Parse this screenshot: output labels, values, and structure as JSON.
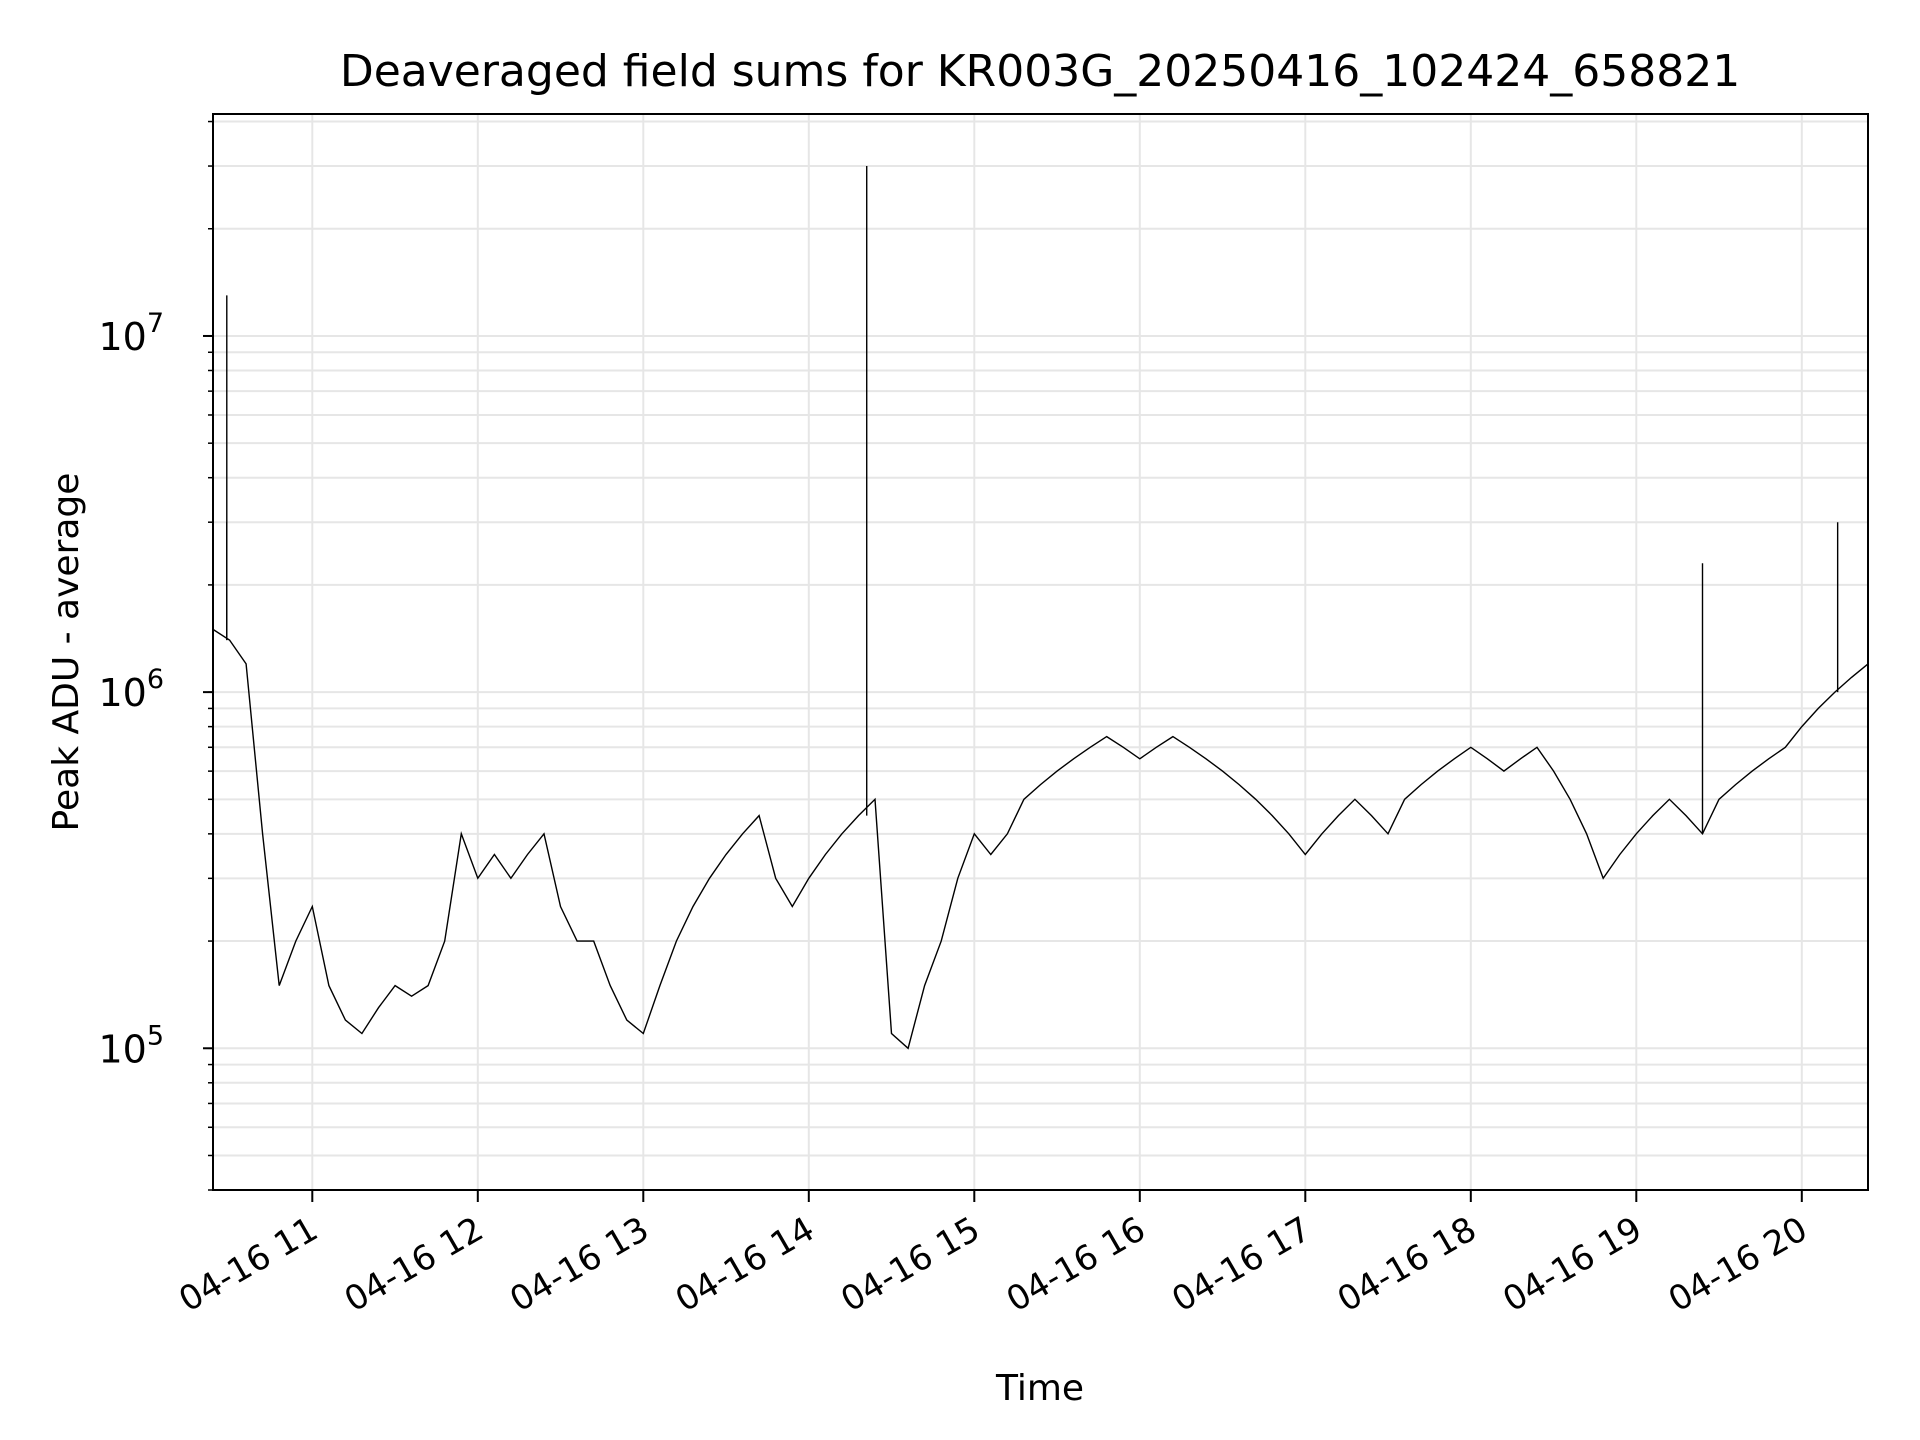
{
  "chart_data": {
    "type": "line",
    "title": "Deaveraged field sums for KR003G_20250416_102424_658821",
    "xlabel": "Time",
    "ylabel": "Peak ADU - average",
    "yscale": "log",
    "xlim": [
      "04-16 10:24",
      "04-16 20:24"
    ],
    "ylim": [
      40000,
      42000000
    ],
    "grid": true,
    "line_color": "#000000",
    "grid_color": "#e6e6e6",
    "x_ticks": [
      "04-16 11",
      "04-16 12",
      "04-16 13",
      "04-16 14",
      "04-16 15",
      "04-16 16",
      "04-16 17",
      "04-16 18",
      "04-16 19",
      "04-16 20"
    ],
    "y_ticks": [
      {
        "value": 100000,
        "base": "10",
        "exp": "5"
      },
      {
        "value": 1000000,
        "base": "10",
        "exp": "6"
      },
      {
        "value": 10000000,
        "base": "10",
        "exp": "7"
      }
    ],
    "series": [
      {
        "x": [
          "04-16 10:24",
          "04-16 10:30",
          "04-16 10:36",
          "04-16 10:42",
          "04-16 10:48",
          "04-16 10:54",
          "04-16 11:00",
          "04-16 11:06",
          "04-16 11:12",
          "04-16 11:18",
          "04-16 11:24",
          "04-16 11:30",
          "04-16 11:36",
          "04-16 11:42",
          "04-16 11:48",
          "04-16 11:54",
          "04-16 12:00",
          "04-16 12:06",
          "04-16 12:12",
          "04-16 12:18",
          "04-16 12:24",
          "04-16 12:30",
          "04-16 12:36",
          "04-16 12:42",
          "04-16 12:48",
          "04-16 12:54",
          "04-16 13:00",
          "04-16 13:06",
          "04-16 13:12",
          "04-16 13:18",
          "04-16 13:24",
          "04-16 13:30",
          "04-16 13:36",
          "04-16 13:42",
          "04-16 13:48",
          "04-16 13:54",
          "04-16 14:00",
          "04-16 14:06",
          "04-16 14:12",
          "04-16 14:18",
          "04-16 14:24",
          "04-16 14:30",
          "04-16 14:36",
          "04-16 14:42",
          "04-16 14:48",
          "04-16 14:54",
          "04-16 15:00",
          "04-16 15:06",
          "04-16 15:12",
          "04-16 15:18",
          "04-16 15:24",
          "04-16 15:30",
          "04-16 15:36",
          "04-16 15:42",
          "04-16 15:48",
          "04-16 15:54",
          "04-16 16:00",
          "04-16 16:06",
          "04-16 16:12",
          "04-16 16:18",
          "04-16 16:24",
          "04-16 16:30",
          "04-16 16:36",
          "04-16 16:42",
          "04-16 16:48",
          "04-16 16:54",
          "04-16 17:00",
          "04-16 17:06",
          "04-16 17:12",
          "04-16 17:18",
          "04-16 17:24",
          "04-16 17:30",
          "04-16 17:36",
          "04-16 17:42",
          "04-16 17:48",
          "04-16 17:54",
          "04-16 18:00",
          "04-16 18:06",
          "04-16 18:12",
          "04-16 18:18",
          "04-16 18:24",
          "04-16 18:30",
          "04-16 18:36",
          "04-16 18:42",
          "04-16 18:48",
          "04-16 18:54",
          "04-16 19:00",
          "04-16 19:06",
          "04-16 19:12",
          "04-16 19:18",
          "04-16 19:24",
          "04-16 19:30",
          "04-16 19:36",
          "04-16 19:42",
          "04-16 19:48",
          "04-16 19:54",
          "04-16 20:00",
          "04-16 20:06",
          "04-16 20:12",
          "04-16 20:18",
          "04-16 20:24"
        ],
        "y": [
          1500000,
          1400000,
          1200000,
          400000,
          150000,
          200000,
          250000,
          150000,
          120000,
          110000,
          130000,
          150000,
          140000,
          150000,
          200000,
          400000,
          300000,
          350000,
          300000,
          350000,
          400000,
          250000,
          200000,
          200000,
          150000,
          120000,
          110000,
          150000,
          200000,
          250000,
          300000,
          350000,
          400000,
          450000,
          300000,
          250000,
          300000,
          350000,
          400000,
          450000,
          500000,
          110000,
          100000,
          150000,
          200000,
          300000,
          400000,
          350000,
          400000,
          500000,
          550000,
          600000,
          650000,
          700000,
          750000,
          700000,
          650000,
          700000,
          750000,
          700000,
          650000,
          600000,
          550000,
          500000,
          450000,
          400000,
          350000,
          400000,
          450000,
          500000,
          450000,
          400000,
          500000,
          550000,
          600000,
          650000,
          700000,
          650000,
          600000,
          650000,
          700000,
          600000,
          500000,
          400000,
          300000,
          350000,
          400000,
          450000,
          500000,
          450000,
          400000,
          500000,
          550000,
          600000,
          650000,
          700000,
          800000,
          900000,
          1000000,
          1100000,
          1200000
        ],
        "spikes": [
          {
            "x": "04-16 10:29",
            "y": 13000000
          },
          {
            "x": "04-16 14:21",
            "y": 30000000
          },
          {
            "x": "04-16 10:29",
            "y": 3000000
          },
          {
            "x": "04-16 20:13",
            "y": 3000000
          },
          {
            "x": "04-16 19:24",
            "y": 2300000
          }
        ]
      }
    ]
  }
}
